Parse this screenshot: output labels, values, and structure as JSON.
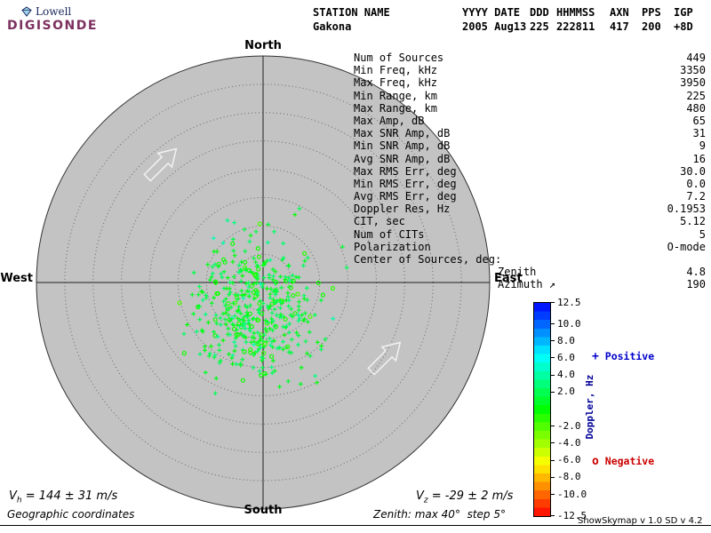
{
  "logo": {
    "brand_top": "Lowell",
    "brand_bottom": "DIGISONDE"
  },
  "header": {
    "columns": [
      {
        "label": "STATION NAME",
        "value": "Gakona"
      },
      {
        "label": "YYYY DATE",
        "value": "2005 Aug13"
      },
      {
        "label": "DDD",
        "value": "225"
      },
      {
        "label": "HHMMSS",
        "value": "222811"
      },
      {
        "label": "AXN",
        "value": "417"
      },
      {
        "label": "PPS",
        "value": "200"
      },
      {
        "label": "IGP",
        "value": "+8D"
      }
    ]
  },
  "compass": {
    "north": "North",
    "south": "South",
    "east": "East",
    "west": "West"
  },
  "stats": {
    "rows": [
      {
        "label": "Num of Sources",
        "value": "449"
      },
      {
        "label": "Min Freq, kHz",
        "value": "3350"
      },
      {
        "label": "Max Freq, kHz",
        "value": "3950"
      },
      {
        "label": "Min Range, km",
        "value": "225"
      },
      {
        "label": "Max Range, km",
        "value": "480"
      },
      {
        "label": "Max Amp, dB",
        "value": "65"
      },
      {
        "label": "Max SNR Amp, dB",
        "value": "31"
      },
      {
        "label": "Min SNR Amp, dB",
        "value": "9"
      },
      {
        "label": "Avg SNR Amp, dB",
        "value": "16"
      },
      {
        "label": "Max RMS Err, deg",
        "value": "30.0"
      },
      {
        "label": "Min RMS Err, deg",
        "value": "0.0"
      },
      {
        "label": "Avg RMS Err, deg",
        "value": "7.2"
      },
      {
        "label": "Doppler Res, Hz",
        "value": "0.1953"
      },
      {
        "label": "CIT, sec",
        "value": "5.12"
      },
      {
        "label": "Num of CITs",
        "value": "5"
      },
      {
        "label": "Polarization",
        "value": "O-mode"
      },
      {
        "label": "Center of Sources, deg:",
        "value": ""
      },
      {
        "label": "Zenith",
        "value": "4.8",
        "indent": true
      },
      {
        "label": "Azimuth ↗",
        "value": "190",
        "indent": true
      }
    ]
  },
  "colorbar": {
    "title": "Doppler, Hz",
    "title_color": "#000099",
    "tick_labels": [
      "12.5",
      "10.0",
      "8.0",
      "6.0",
      "4.0",
      "2.0",
      "-2.0",
      "-4.0",
      "-6.0",
      "-8.0",
      "-10.0",
      "-12.5"
    ],
    "max_hz": 12.5,
    "min_hz": -12.5
  },
  "legend": {
    "positive": {
      "marker": "+",
      "label": "Positive",
      "color": "#0000cc"
    },
    "negative": {
      "marker": "o",
      "label": "Negative",
      "color": "#cc0000"
    }
  },
  "footer": {
    "vh_sym": "V",
    "vh_sub": "h",
    "vh_rest": " = 144 ± 31 m/s",
    "vz_sym": "V",
    "vz_sub": "z",
    "vz_rest": " = -29 ± 2 m/s",
    "coords_label": "Geographic coordinates",
    "zenith_note": "Zenith: max 40°  step 5°",
    "version": "ShowSkymap v 1.0  SD v 4.2"
  },
  "chart_data": {
    "type": "scatter",
    "projection": "polar-skymap",
    "compass_labels": [
      "North",
      "East",
      "South",
      "West"
    ],
    "max_zenith_deg": 40,
    "zenith_ring_step_deg": 5,
    "num_sources": 449,
    "center_of_sources": {
      "zenith_deg": 4.8,
      "azimuth_deg": 190
    },
    "doppler_axis": {
      "label": "Doppler, Hz",
      "min": -12.5,
      "max": 12.5,
      "ticks": [
        12.5,
        10.0,
        8.0,
        6.0,
        4.0,
        2.0,
        -2.0,
        -4.0,
        -6.0,
        -8.0,
        -10.0,
        -12.5
      ]
    },
    "velocity_horizontal_ms": {
      "value": 144,
      "error": 31
    },
    "velocity_vertical_ms": {
      "value": -29,
      "error": 2
    },
    "point_cloud_estimate": {
      "seed": 20050813,
      "count": 449,
      "center_offset_frac_x": -0.021,
      "center_offset_frac_y": 0.118,
      "sigma_frac_x": 0.13,
      "sigma_frac_y": 0.155,
      "doppler_mean_hz": 1.3,
      "doppler_sigma_hz": 1.2
    },
    "drift_arrows": {
      "direction_deg": 45,
      "positions_frac": [
        {
          "x": -0.455,
          "y": -0.518
        },
        {
          "x": 0.533,
          "y": 0.337
        }
      ]
    }
  }
}
